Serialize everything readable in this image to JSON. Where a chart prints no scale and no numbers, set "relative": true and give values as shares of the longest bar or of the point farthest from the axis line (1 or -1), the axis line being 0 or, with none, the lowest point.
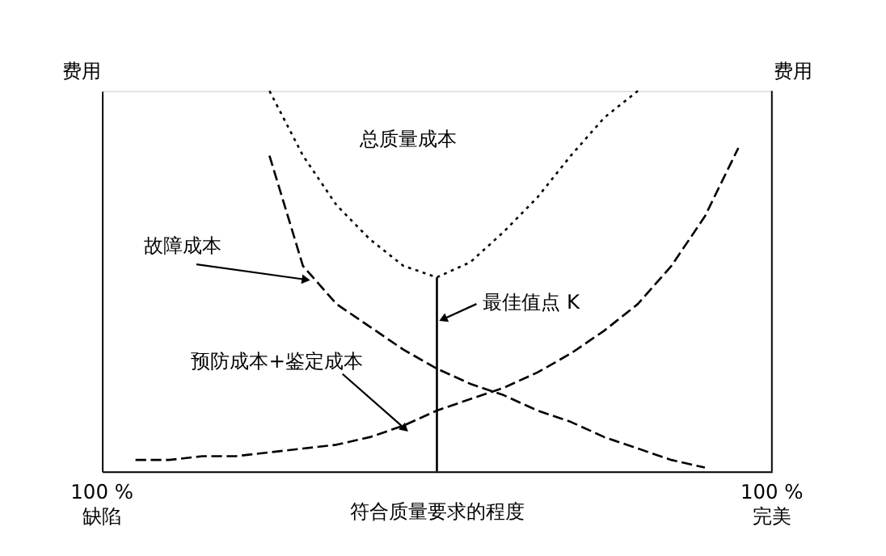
{
  "chart_data": {
    "type": "line",
    "relative": true,
    "ylabel": "费用",
    "y2label": "费用",
    "xlabel": "符合质量要求的程度",
    "categories": [
      null,
      null,
      null,
      null,
      null,
      null,
      null,
      null,
      null,
      null,
      null,
      null,
      null,
      null,
      null,
      null,
      null,
      null,
      null,
      null,
      null
    ],
    "series": [
      {
        "color": "#000000",
        "line_style": "dotted",
        "values": [
          null,
          null,
          null,
          null,
          null,
          1.0,
          0.83,
          0.7,
          0.61,
          0.54,
          0.51,
          0.55,
          0.63,
          0.72,
          0.83,
          0.93,
          1.0,
          null,
          null,
          null,
          null
        ]
      },
      {
        "color": "#000000",
        "line_style": "dashed",
        "values": [
          null,
          null,
          null,
          null,
          null,
          0.83,
          0.54,
          0.44,
          0.38,
          0.32,
          0.27,
          0.23,
          0.2,
          0.16,
          0.13,
          0.09,
          0.06,
          0.03,
          0.01,
          null,
          null
        ]
      },
      {
        "color": "#000000",
        "line_style": "dashed",
        "values": [
          null,
          0.03,
          0.03,
          0.04,
          0.04,
          0.05,
          0.06,
          0.07,
          0.09,
          0.12,
          0.16,
          0.19,
          0.22,
          0.26,
          0.31,
          0.37,
          0.44,
          0.54,
          0.67,
          0.85,
          null
        ]
      }
    ],
    "annotations": [
      "总质量成本",
      "故障成本",
      "预防成本+鉴定成本",
      "最佳值点 K",
      "100 %\n缺陷",
      "100 %\n完美"
    ],
    "grid": false
  }
}
